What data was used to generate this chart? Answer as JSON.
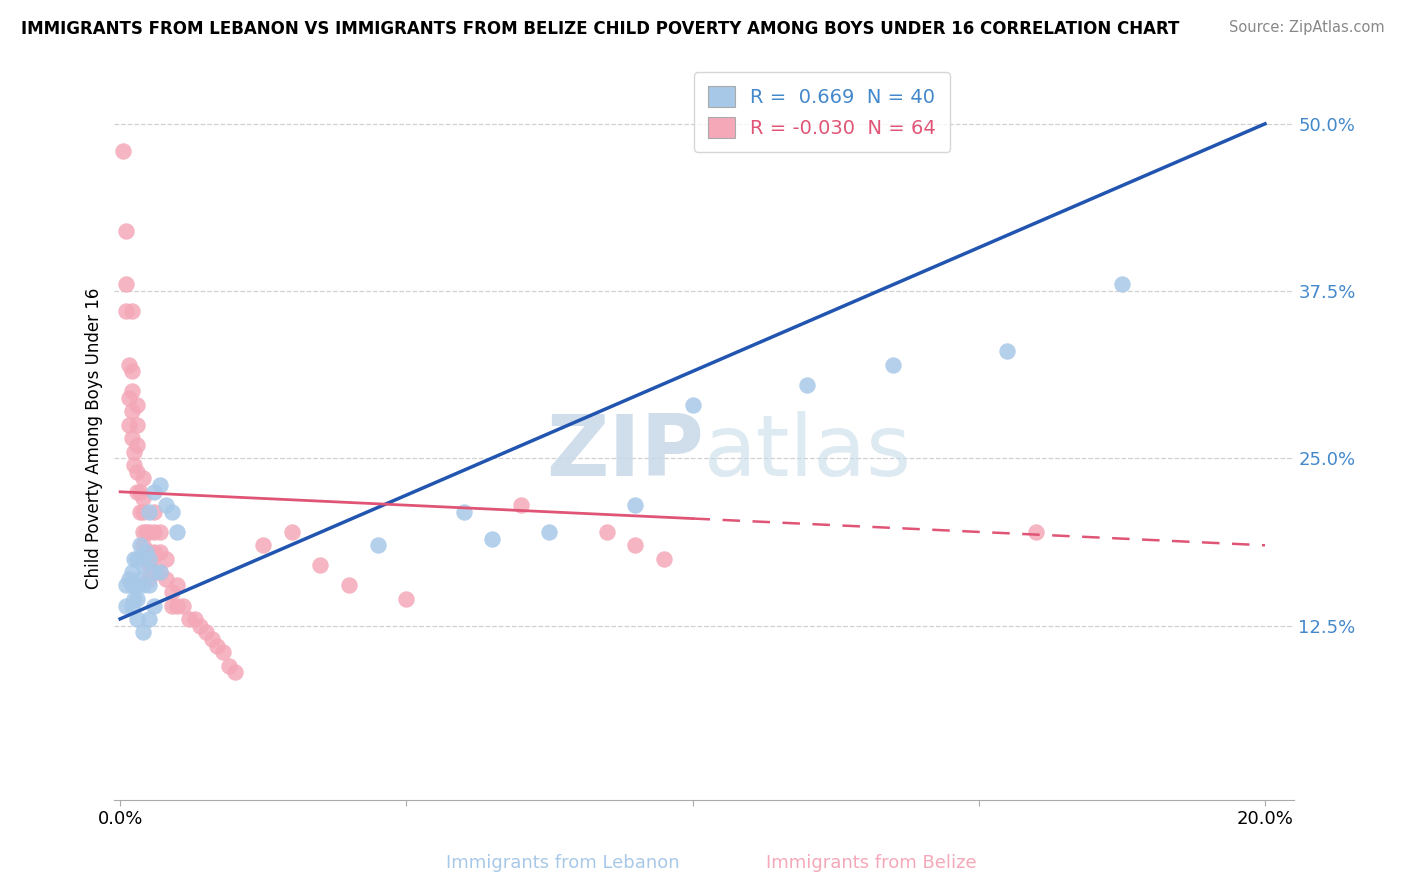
{
  "title": "IMMIGRANTS FROM LEBANON VS IMMIGRANTS FROM BELIZE CHILD POVERTY AMONG BOYS UNDER 16 CORRELATION CHART",
  "source": "Source: ZipAtlas.com",
  "xlabel_lebanon": "Immigrants from Lebanon",
  "xlabel_belize": "Immigrants from Belize",
  "ylabel": "Child Poverty Among Boys Under 16",
  "xlim": [
    -0.001,
    0.205
  ],
  "ylim": [
    -0.005,
    0.535
  ],
  "x_ticks": [
    0.0,
    0.05,
    0.1,
    0.15,
    0.2
  ],
  "y_ticks": [
    0.0,
    0.125,
    0.25,
    0.375,
    0.5
  ],
  "lebanon_R": 0.669,
  "lebanon_N": 40,
  "belize_R": -0.03,
  "belize_N": 64,
  "lebanon_scatter_color": "#a8c8e8",
  "belize_scatter_color": "#f4a8b8",
  "lebanon_line_color": "#2255b0",
  "belize_line_color": "#e05575",
  "watermark_color": "#dde8f5",
  "lebanon_line_x0": 0.0,
  "lebanon_line_y0": 0.13,
  "lebanon_line_x1": 0.2,
  "lebanon_line_y1": 0.5,
  "belize_line_x0": 0.0,
  "belize_line_y0": 0.225,
  "belize_line_x_solid_end": 0.1,
  "belize_line_x1": 0.2,
  "belize_line_y1": 0.185,
  "lebanon_x": [
    0.001,
    0.001,
    0.0015,
    0.002,
    0.002,
    0.002,
    0.0025,
    0.0025,
    0.003,
    0.003,
    0.003,
    0.003,
    0.0035,
    0.0035,
    0.004,
    0.004,
    0.004,
    0.0045,
    0.005,
    0.005,
    0.005,
    0.005,
    0.006,
    0.006,
    0.006,
    0.007,
    0.007,
    0.008,
    0.009,
    0.01,
    0.045,
    0.06,
    0.065,
    0.075,
    0.09,
    0.1,
    0.12,
    0.135,
    0.155,
    0.175
  ],
  "lebanon_y": [
    0.14,
    0.155,
    0.16,
    0.14,
    0.155,
    0.165,
    0.145,
    0.175,
    0.13,
    0.145,
    0.155,
    0.175,
    0.16,
    0.185,
    0.12,
    0.155,
    0.17,
    0.18,
    0.13,
    0.155,
    0.175,
    0.21,
    0.14,
    0.165,
    0.225,
    0.165,
    0.23,
    0.215,
    0.21,
    0.195,
    0.185,
    0.21,
    0.19,
    0.195,
    0.215,
    0.29,
    0.305,
    0.32,
    0.33,
    0.38
  ],
  "belize_x": [
    0.0005,
    0.001,
    0.001,
    0.001,
    0.0015,
    0.0015,
    0.0015,
    0.002,
    0.002,
    0.002,
    0.002,
    0.002,
    0.0025,
    0.0025,
    0.003,
    0.003,
    0.003,
    0.003,
    0.003,
    0.0035,
    0.0035,
    0.004,
    0.004,
    0.004,
    0.004,
    0.004,
    0.0045,
    0.005,
    0.005,
    0.005,
    0.005,
    0.0055,
    0.006,
    0.006,
    0.006,
    0.007,
    0.007,
    0.007,
    0.008,
    0.008,
    0.009,
    0.009,
    0.01,
    0.01,
    0.011,
    0.012,
    0.013,
    0.014,
    0.015,
    0.016,
    0.017,
    0.018,
    0.019,
    0.02,
    0.025,
    0.03,
    0.035,
    0.04,
    0.05,
    0.07,
    0.085,
    0.09,
    0.095,
    0.16
  ],
  "belize_y": [
    0.48,
    0.42,
    0.38,
    0.36,
    0.32,
    0.295,
    0.275,
    0.36,
    0.315,
    0.3,
    0.285,
    0.265,
    0.255,
    0.245,
    0.29,
    0.275,
    0.26,
    0.24,
    0.225,
    0.21,
    0.225,
    0.235,
    0.22,
    0.21,
    0.195,
    0.185,
    0.195,
    0.18,
    0.17,
    0.16,
    0.195,
    0.175,
    0.21,
    0.195,
    0.18,
    0.195,
    0.18,
    0.165,
    0.175,
    0.16,
    0.15,
    0.14,
    0.155,
    0.14,
    0.14,
    0.13,
    0.13,
    0.125,
    0.12,
    0.115,
    0.11,
    0.105,
    0.095,
    0.09,
    0.185,
    0.195,
    0.17,
    0.155,
    0.145,
    0.215,
    0.195,
    0.185,
    0.175,
    0.195
  ]
}
